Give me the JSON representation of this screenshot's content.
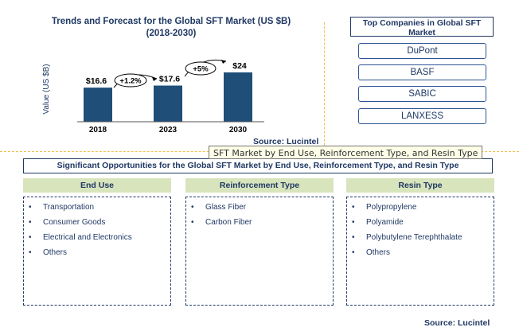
{
  "chart": {
    "title_line1": "Trends and Forecast for the Global SFT Market (US $B)",
    "title_line2": "(2018-2030)",
    "source": "Source: Lucintel"
  },
  "chart_data": {
    "type": "bar",
    "categories": [
      "2018",
      "2023",
      "2030"
    ],
    "values": [
      16.6,
      17.6,
      24
    ],
    "value_labels": [
      "$16.6",
      "$17.6",
      "$24"
    ],
    "growth_labels": [
      "+1.2%",
      "+5%"
    ],
    "ylabel": "Value (US $B)",
    "bar_color": "#1f4e79"
  },
  "companies": {
    "title": "Top Companies in Global SFT Market",
    "items": [
      "DuPont",
      "BASF",
      "SABIC",
      "LANXESS"
    ]
  },
  "tooltip": "SFT Market by End Use, Reinforcement Type, and Resin Type",
  "opportunities": {
    "title": "Significant Opportunities for the Global SFT Market by End Use, Reinforcement Type, and Resin Type",
    "columns": [
      {
        "heading": "End Use",
        "items": [
          "Transportation",
          "Consumer Goods",
          "Electrical and Electronics",
          "Others"
        ]
      },
      {
        "heading": "Reinforcement Type",
        "items": [
          "Glass Fiber",
          "Carbon Fiber"
        ]
      },
      {
        "heading": "Resin Type",
        "items": [
          "Polypropylene",
          "Polyamide",
          "Polybutylene Terephthalate",
          "Others"
        ]
      }
    ],
    "source": "Source: Lucintel",
    "header_color": "#d8e4bc",
    "text_color": "#1f3864"
  }
}
